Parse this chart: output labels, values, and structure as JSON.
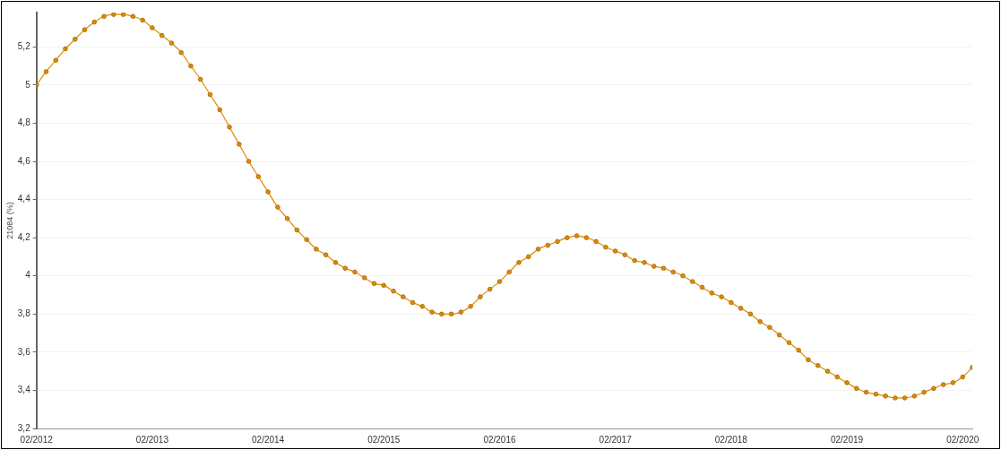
{
  "chart_data": {
    "type": "line",
    "ylabel": "21084 (%)",
    "x": [
      "2012-02",
      "2012-03",
      "2012-04",
      "2012-05",
      "2012-06",
      "2012-07",
      "2012-08",
      "2012-09",
      "2012-10",
      "2012-11",
      "2012-12",
      "2013-01",
      "2013-02",
      "2013-03",
      "2013-04",
      "2013-05",
      "2013-06",
      "2013-07",
      "2013-08",
      "2013-09",
      "2013-10",
      "2013-11",
      "2013-12",
      "2014-01",
      "2014-02",
      "2014-03",
      "2014-04",
      "2014-05",
      "2014-06",
      "2014-07",
      "2014-08",
      "2014-09",
      "2014-10",
      "2014-11",
      "2014-12",
      "2015-01",
      "2015-02",
      "2015-03",
      "2015-04",
      "2015-05",
      "2015-06",
      "2015-07",
      "2015-08",
      "2015-09",
      "2015-10",
      "2015-11",
      "2015-12",
      "2016-01",
      "2016-02",
      "2016-03",
      "2016-04",
      "2016-05",
      "2016-06",
      "2016-07",
      "2016-08",
      "2016-09",
      "2016-10",
      "2016-11",
      "2016-12",
      "2017-01",
      "2017-02",
      "2017-03",
      "2017-04",
      "2017-05",
      "2017-06",
      "2017-07",
      "2017-08",
      "2017-09",
      "2017-10",
      "2017-11",
      "2017-12",
      "2018-01",
      "2018-02",
      "2018-03",
      "2018-04",
      "2018-05",
      "2018-06",
      "2018-07",
      "2018-08",
      "2018-09",
      "2018-10",
      "2018-11",
      "2018-12",
      "2019-01",
      "2019-02",
      "2019-03",
      "2019-04",
      "2019-05",
      "2019-06",
      "2019-07",
      "2019-08",
      "2019-09",
      "2019-10",
      "2019-11",
      "2019-12",
      "2020-01",
      "2020-02",
      "2020-03"
    ],
    "series": [
      {
        "color": "#d98c0a",
        "values": [
          5.0,
          5.07,
          5.13,
          5.19,
          5.24,
          5.29,
          5.33,
          5.36,
          5.37,
          5.37,
          5.36,
          5.34,
          5.3,
          5.26,
          5.22,
          5.17,
          5.1,
          5.03,
          4.95,
          4.87,
          4.78,
          4.69,
          4.6,
          4.52,
          4.44,
          4.36,
          4.3,
          4.24,
          4.19,
          4.14,
          4.11,
          4.07,
          4.04,
          4.02,
          3.99,
          3.96,
          3.95,
          3.92,
          3.89,
          3.86,
          3.84,
          3.81,
          3.8,
          3.8,
          3.81,
          3.84,
          3.89,
          3.93,
          3.97,
          4.02,
          4.07,
          4.1,
          4.14,
          4.16,
          4.18,
          4.2,
          4.21,
          4.2,
          4.18,
          4.15,
          4.13,
          4.11,
          4.08,
          4.07,
          4.05,
          4.04,
          4.02,
          4.0,
          3.97,
          3.94,
          3.91,
          3.89,
          3.86,
          3.83,
          3.8,
          3.76,
          3.73,
          3.69,
          3.65,
          3.61,
          3.56,
          3.53,
          3.5,
          3.47,
          3.44,
          3.41,
          3.39,
          3.38,
          3.37,
          3.36,
          3.36,
          3.37,
          3.39,
          3.41,
          3.43,
          3.44,
          3.47,
          3.52
        ]
      }
    ],
    "xlim": [
      "2012-02",
      "2020-03"
    ],
    "xticks": [
      {
        "value": "2012-02",
        "label": "02/2012"
      },
      {
        "value": "2013-02",
        "label": "02/2013"
      },
      {
        "value": "2014-02",
        "label": "02/2014"
      },
      {
        "value": "2015-02",
        "label": "02/2015"
      },
      {
        "value": "2016-02",
        "label": "02/2016"
      },
      {
        "value": "2017-02",
        "label": "02/2017"
      },
      {
        "value": "2018-02",
        "label": "02/2018"
      },
      {
        "value": "2019-02",
        "label": "02/2019"
      },
      {
        "value": "2020-02",
        "label": "02/2020"
      }
    ],
    "ylim": [
      3.2,
      5.38
    ],
    "yticks": [
      {
        "value": 3.2,
        "label": "3,2"
      },
      {
        "value": 3.4,
        "label": "3,4"
      },
      {
        "value": 3.6,
        "label": "3,6"
      },
      {
        "value": 3.8,
        "label": "3,8"
      },
      4,
      {
        "value": 4.2,
        "label": "4,2"
      },
      {
        "value": 4.4,
        "label": "4,4"
      },
      {
        "value": 4.6,
        "label": "4,6"
      },
      {
        "value": 4.8,
        "label": "4,8"
      },
      5,
      {
        "value": 5.2,
        "label": "5,2"
      }
    ],
    "grid": "y",
    "marker": "circle",
    "line_style": "solid",
    "legend": false
  }
}
